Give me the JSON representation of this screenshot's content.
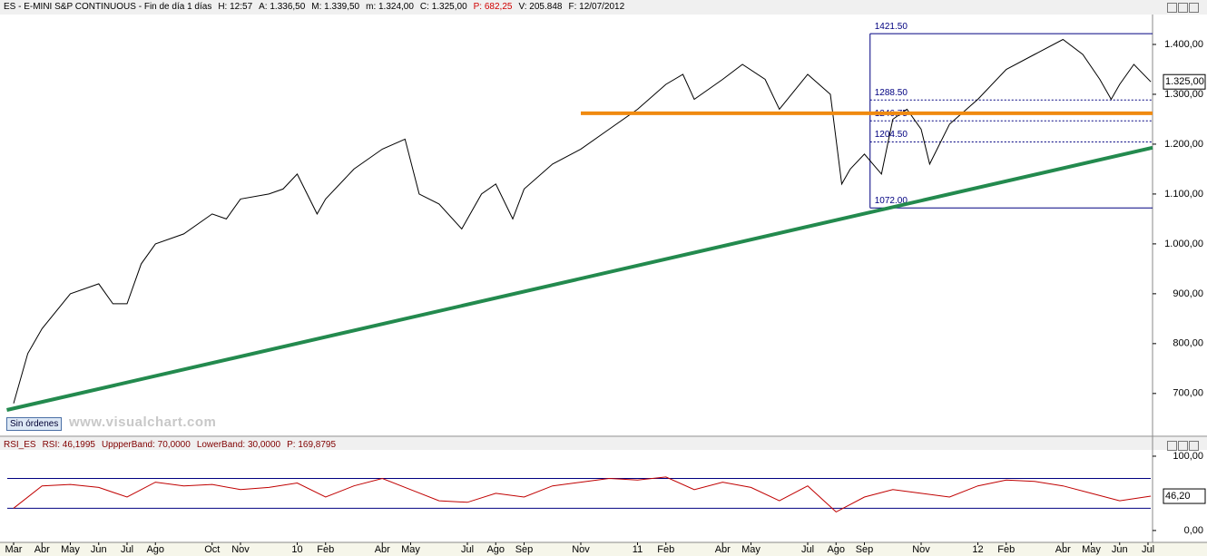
{
  "header": {
    "title": "ES - E-MINI S&P CONTINUOUS - Fin de día 1 días",
    "fields": [
      {
        "text": "H: 12:57"
      },
      {
        "text": "A: 1.336,50"
      },
      {
        "text": "M: 1.339,50"
      },
      {
        "text": "m: 1.324,00"
      },
      {
        "text": "C: 1.325,00"
      },
      {
        "text": "P: 682,25",
        "color": "#d00000"
      },
      {
        "text": "V: 205.848"
      },
      {
        "text": "F: 12/07/2012"
      }
    ]
  },
  "rsi_header": {
    "fields": [
      "RSI_ES",
      "RSI: 46,1995",
      "UppperBand: 70,0000",
      "LowerBand: 30,0000",
      "P: 169,8795"
    ]
  },
  "button": "Sin órdenes",
  "watermark": "www.visualchart.com",
  "chart_data": [
    {
      "type": "line",
      "color": "#000000",
      "x": [
        0,
        0.5,
        1,
        2,
        3,
        3.5,
        4,
        4.5,
        5,
        6,
        7,
        7.5,
        8,
        9,
        9.5,
        10,
        10.7,
        11,
        12,
        13,
        13.8,
        14.3,
        15,
        15.8,
        16.5,
        17,
        17.6,
        18,
        19,
        20,
        21,
        22,
        23,
        23.6,
        24,
        25,
        25.7,
        26.5,
        27,
        28,
        28.8,
        29.2,
        29.5,
        30,
        30.6,
        31,
        31.5,
        32,
        32.3,
        33,
        34,
        35,
        36,
        37,
        37.7,
        38.3,
        38.7,
        39,
        39.5,
        40.1
      ],
      "values": [
        680,
        780,
        830,
        900,
        920,
        880,
        880,
        960,
        1000,
        1020,
        1060,
        1050,
        1090,
        1100,
        1110,
        1140,
        1060,
        1090,
        1150,
        1190,
        1210,
        1100,
        1080,
        1030,
        1100,
        1120,
        1050,
        1110,
        1160,
        1190,
        1230,
        1270,
        1320,
        1340,
        1290,
        1330,
        1360,
        1330,
        1270,
        1340,
        1300,
        1120,
        1150,
        1180,
        1140,
        1250,
        1270,
        1230,
        1160,
        1240,
        1290,
        1350,
        1380,
        1410,
        1380,
        1330,
        1290,
        1320,
        1360,
        1325
      ],
      "xlim": [
        -0.48,
        40.16
      ],
      "ylim": [
        616,
        1460
      ],
      "yticks": [
        {
          "value": 700,
          "label": "700,00"
        },
        {
          "value": 800,
          "label": "800,00"
        },
        {
          "value": 900,
          "label": "900,00"
        },
        {
          "value": 1000,
          "label": "1.000,00"
        },
        {
          "value": 1100,
          "label": "1.100,00"
        },
        {
          "value": 1200,
          "label": "1.200,00"
        },
        {
          "value": 1300,
          "label": "1.300,00"
        },
        {
          "value": 1400,
          "label": "1.400,00"
        }
      ],
      "last": {
        "value": 1325,
        "label": "1.325,00"
      },
      "lines": [
        {
          "color": "#f08a10",
          "x": [
            20,
            40.16
          ],
          "values": [
            1262,
            1262
          ]
        },
        {
          "color": "#238a4e",
          "x": [
            -0.24,
            40.16
          ],
          "values": [
            667,
            1193
          ]
        }
      ],
      "fibonacci": {
        "color": "#000080",
        "x": [
          30.2,
          40.16
        ],
        "levels": [
          {
            "value": 1421.5,
            "label": "1421.50"
          },
          {
            "value": 1288.5,
            "label": "1288.50"
          },
          {
            "value": 1246.75,
            "label": "1246.75"
          },
          {
            "value": 1204.5,
            "label": "1204.50"
          },
          {
            "value": 1072,
            "label": "1072.00"
          }
        ]
      }
    },
    {
      "type": "line",
      "color": "#c00000",
      "x": [
        0,
        1,
        2,
        3,
        4,
        5,
        6,
        7,
        8,
        9,
        10,
        11,
        12,
        13,
        14,
        15,
        16,
        17,
        18,
        19,
        20,
        21,
        22,
        23,
        24,
        25,
        26,
        27,
        28,
        29,
        30,
        31,
        32,
        33,
        34,
        35,
        36,
        37,
        38,
        39,
        40.1
      ],
      "values": [
        30,
        60,
        62,
        58,
        45,
        65,
        60,
        62,
        55,
        58,
        64,
        45,
        60,
        70,
        55,
        40,
        38,
        50,
        45,
        60,
        65,
        70,
        68,
        72,
        55,
        65,
        58,
        40,
        60,
        25,
        45,
        55,
        50,
        45,
        60,
        68,
        66,
        60,
        50,
        40,
        46.2
      ],
      "xlim": [
        -0.48,
        40.16
      ],
      "ylim": [
        -16,
        108.5
      ],
      "yticks": [
        {
          "value": 100,
          "label": "100,00"
        },
        {
          "value": 0,
          "label": "0,00"
        }
      ],
      "bands": [
        70,
        30
      ],
      "band_color": "#000080",
      "last": {
        "value": 46.2,
        "label": "46,20"
      },
      "xticks": [
        {
          "value": 0,
          "label": "Mar"
        },
        {
          "value": 1,
          "label": "Abr"
        },
        {
          "value": 2,
          "label": "May"
        },
        {
          "value": 3,
          "label": "Jun"
        },
        {
          "value": 4,
          "label": "Jul"
        },
        {
          "value": 5,
          "label": "Ago"
        },
        {
          "value": 7,
          "label": "Oct"
        },
        {
          "value": 8,
          "label": "Nov"
        },
        {
          "value": 10,
          "label": "10"
        },
        {
          "value": 11,
          "label": "Feb"
        },
        {
          "value": 13,
          "label": "Abr"
        },
        {
          "value": 14,
          "label": "May"
        },
        {
          "value": 16,
          "label": "Jul"
        },
        {
          "value": 17,
          "label": "Ago"
        },
        {
          "value": 18,
          "label": "Sep"
        },
        {
          "value": 20,
          "label": "Nov"
        },
        {
          "value": 22,
          "label": "11"
        },
        {
          "value": 23,
          "label": "Feb"
        },
        {
          "value": 25,
          "label": "Abr"
        },
        {
          "value": 26,
          "label": "May"
        },
        {
          "value": 28,
          "label": "Jul"
        },
        {
          "value": 29,
          "label": "Ago"
        },
        {
          "value": 30,
          "label": "Sep"
        },
        {
          "value": 32,
          "label": "Nov"
        },
        {
          "value": 34,
          "label": "12"
        },
        {
          "value": 35,
          "label": "Feb"
        },
        {
          "value": 37,
          "label": "Abr"
        },
        {
          "value": 38,
          "label": "May"
        },
        {
          "value": 39,
          "label": "Jun"
        },
        {
          "value": 40,
          "label": "Jul"
        }
      ]
    }
  ]
}
